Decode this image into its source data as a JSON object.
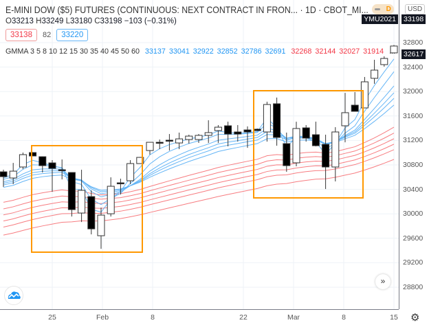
{
  "header": {
    "title": "E-MINI DOW ($5) FUTURES (CONTINUOUS: NEXT CONTRACT IN FRON... · 1D · CBOT_MI...",
    "ohlc": {
      "o_label": "O",
      "o": "33213",
      "h_label": "H",
      "h": "33249",
      "l_label": "L",
      "l": "33180",
      "c_label": "C",
      "c": "33198",
      "change": "−103 (−0.31%)"
    },
    "bid": "33138",
    "spread": "82",
    "ask": "33220",
    "badge_letter": "D",
    "currency": "USD"
  },
  "gmma_legend": {
    "label": "GMMA 3 5 8 10 12 15 30 35 40 45 50 60",
    "short_values": [
      "33137",
      "33041",
      "32922",
      "32852",
      "32786",
      "32691"
    ],
    "long_values": [
      "32268",
      "32144",
      "32027",
      "31914"
    ],
    "more": "..."
  },
  "price_axis": {
    "labels": [
      "32800",
      "32400",
      "32000",
      "31600",
      "31200",
      "30800",
      "30400",
      "30000",
      "29600",
      "29200",
      "28800"
    ],
    "contract_tag": "YMU2021",
    "last_price_tag": "33198",
    "gmma_tag": "32617"
  },
  "time_axis": {
    "labels": [
      "25",
      "Feb",
      "8",
      "22",
      "Mar",
      "8",
      "15"
    ]
  },
  "controls": {
    "scroll_label": "»",
    "settings_icon": "gear-icon",
    "logo": "tradingview-logo"
  },
  "colors": {
    "up": "#ffffff",
    "down": "#000000",
    "short_ema": "#64b5f6",
    "long_ema": "#f77c80",
    "highlight": "#ff9800"
  },
  "chart_data": {
    "type": "candlestick",
    "ylim": [
      28600,
      33200
    ],
    "ema_short_periods": [
      3,
      5,
      8,
      10,
      12,
      15
    ],
    "ema_long_periods": [
      30,
      35,
      40,
      45,
      50,
      60
    ],
    "long_ema_start": [
      30160,
      30050,
      29950,
      29850,
      29750,
      29620
    ],
    "candles": [
      [
        30687,
        30721,
        30440,
        30608
      ],
      [
        30586,
        30833,
        30485,
        30698
      ],
      [
        30766,
        31002,
        30732,
        30968
      ],
      [
        31002,
        31010,
        30946,
        30946
      ],
      [
        30934,
        30940,
        30676,
        30788
      ],
      [
        30833,
        30878,
        30361,
        30743
      ],
      [
        30721,
        30889,
        30563,
        30710
      ],
      [
        30676,
        30676,
        29956,
        30069
      ],
      [
        30013,
        30721,
        29866,
        30384
      ],
      [
        30282,
        30384,
        29664,
        29754
      ],
      [
        29642,
        30102,
        29428,
        29979
      ],
      [
        30001,
        30597,
        29956,
        30451
      ],
      [
        30507,
        30575,
        30316,
        30500
      ],
      [
        30541,
        30878,
        30485,
        30822
      ],
      [
        30822,
        30930,
        30822,
        30923
      ],
      [
        31035,
        31170,
        30968,
        31170
      ],
      [
        31170,
        31215,
        31058,
        31165
      ],
      [
        31204,
        31305,
        31035,
        31200
      ],
      [
        31159,
        31328,
        31058,
        31226
      ],
      [
        31215,
        31294,
        31148,
        31271
      ],
      [
        31215,
        31305,
        31159,
        31283
      ],
      [
        31283,
        31530,
        31159,
        31328
      ],
      [
        31361,
        31451,
        31159,
        31417
      ],
      [
        31440,
        31507,
        31103,
        31305
      ],
      [
        31339,
        31451,
        31181,
        31305
      ],
      [
        31372,
        31429,
        31080,
        31339
      ],
      [
        31384,
        31395,
        31370,
        31361
      ],
      [
        31339,
        31833,
        31181,
        31788
      ],
      [
        31800,
        31901,
        31114,
        31249
      ],
      [
        31148,
        31328,
        30687,
        30788
      ],
      [
        30834,
        31507,
        30778,
        31395
      ],
      [
        31406,
        31451,
        31181,
        31238
      ],
      [
        31294,
        31507,
        31103,
        31114
      ],
      [
        31136,
        31294,
        30406,
        30766
      ],
      [
        30766,
        31417,
        30530,
        31339
      ],
      [
        31440,
        31979,
        31170,
        31654
      ],
      [
        31777,
        31991,
        31676,
        31676
      ],
      [
        31732,
        32238,
        31732,
        32159
      ],
      [
        32216,
        32519,
        32126,
        32350
      ],
      [
        32440,
        32575,
        32407,
        32541
      ],
      [
        32632,
        32760,
        32632,
        32744
      ]
    ],
    "highlight_ranges": [
      [
        3,
        14
      ],
      [
        26,
        37
      ]
    ]
  }
}
